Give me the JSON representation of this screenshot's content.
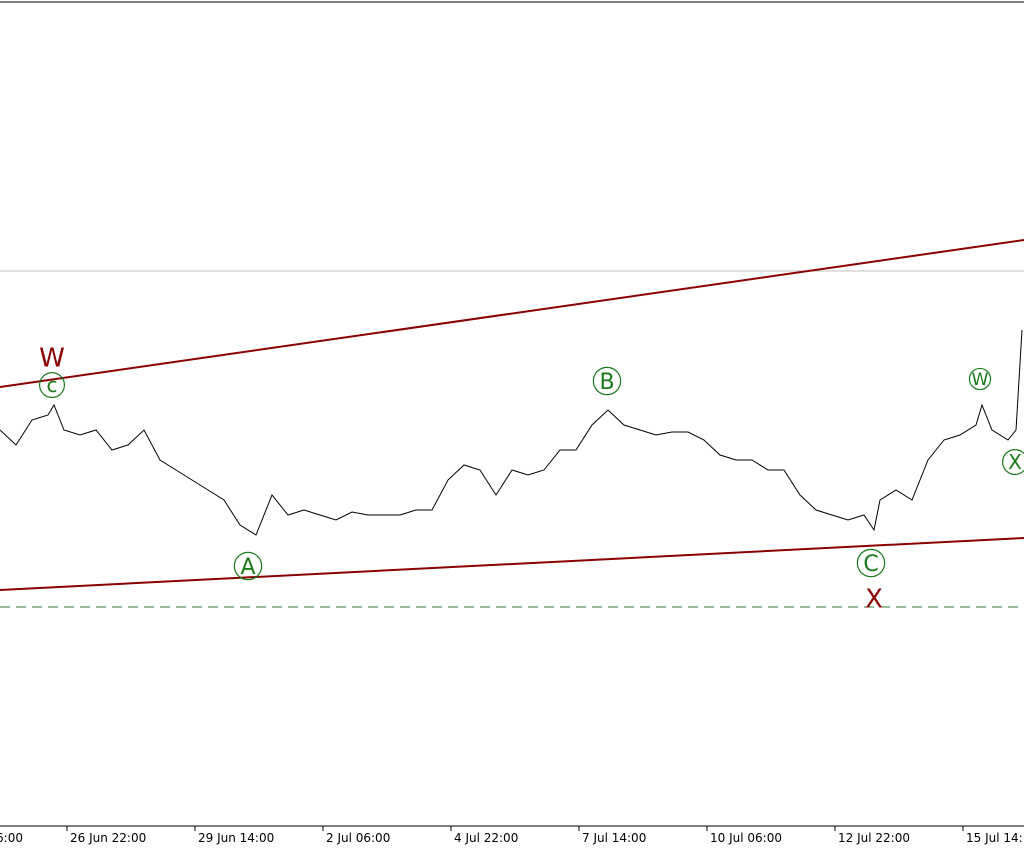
{
  "chart_data": {
    "type": "line",
    "x": [
      0,
      16,
      32,
      48,
      54,
      64,
      80,
      96,
      112,
      128,
      144,
      160,
      176,
      192,
      208,
      224,
      240,
      256,
      272,
      288,
      304,
      320,
      336,
      352,
      368,
      384,
      400,
      416,
      432,
      448,
      464,
      480,
      496,
      512,
      528,
      544,
      560,
      576,
      592,
      608,
      624,
      640,
      656,
      672,
      688,
      704,
      720,
      736,
      752,
      768,
      784,
      800,
      816,
      832,
      848,
      864,
      874,
      880,
      896,
      912,
      928,
      944,
      960,
      976,
      982,
      992,
      1008,
      1016,
      1022
    ],
    "series": [
      {
        "color": "#000000",
        "values": [
          396,
          381,
          406,
          411,
          421,
          396,
          391,
          396,
          376,
          381,
          396,
          366,
          356,
          346,
          336,
          326,
          301,
          291,
          331,
          311,
          316,
          311,
          306,
          314,
          311,
          311,
          311,
          316,
          316,
          346,
          361,
          356,
          331,
          356,
          351,
          356,
          376,
          376,
          401,
          416,
          401,
          396,
          391,
          394,
          394,
          386,
          371,
          366,
          366,
          356,
          356,
          331,
          316,
          311,
          306,
          311,
          296,
          326,
          336,
          326,
          366,
          386,
          391,
          401,
          421,
          396,
          386,
          396,
          496
        ]
      }
    ],
    "xlim": [
      0,
      1024
    ],
    "ylim": [
      0,
      826
    ],
    "xticks": [
      {
        "value": -61,
        "label": "6:00"
      },
      {
        "value": 67,
        "label": "26 Jun 22:00"
      },
      {
        "value": 195,
        "label": "29 Jun 14:00"
      },
      {
        "value": 323,
        "label": "2 Jul 06:00"
      },
      {
        "value": 451,
        "label": "4 Jul 22:00"
      },
      {
        "value": 579,
        "label": "7 Jul 14:00"
      },
      {
        "value": 707,
        "label": "10 Jul 06:00"
      },
      {
        "value": 835,
        "label": "12 Jul 22:00"
      },
      {
        "value": 963,
        "label": "15 Jul 14:"
      }
    ],
    "annotations": [
      "W",
      "c",
      "A",
      "B",
      "W",
      "X",
      "C",
      "X"
    ]
  }
}
